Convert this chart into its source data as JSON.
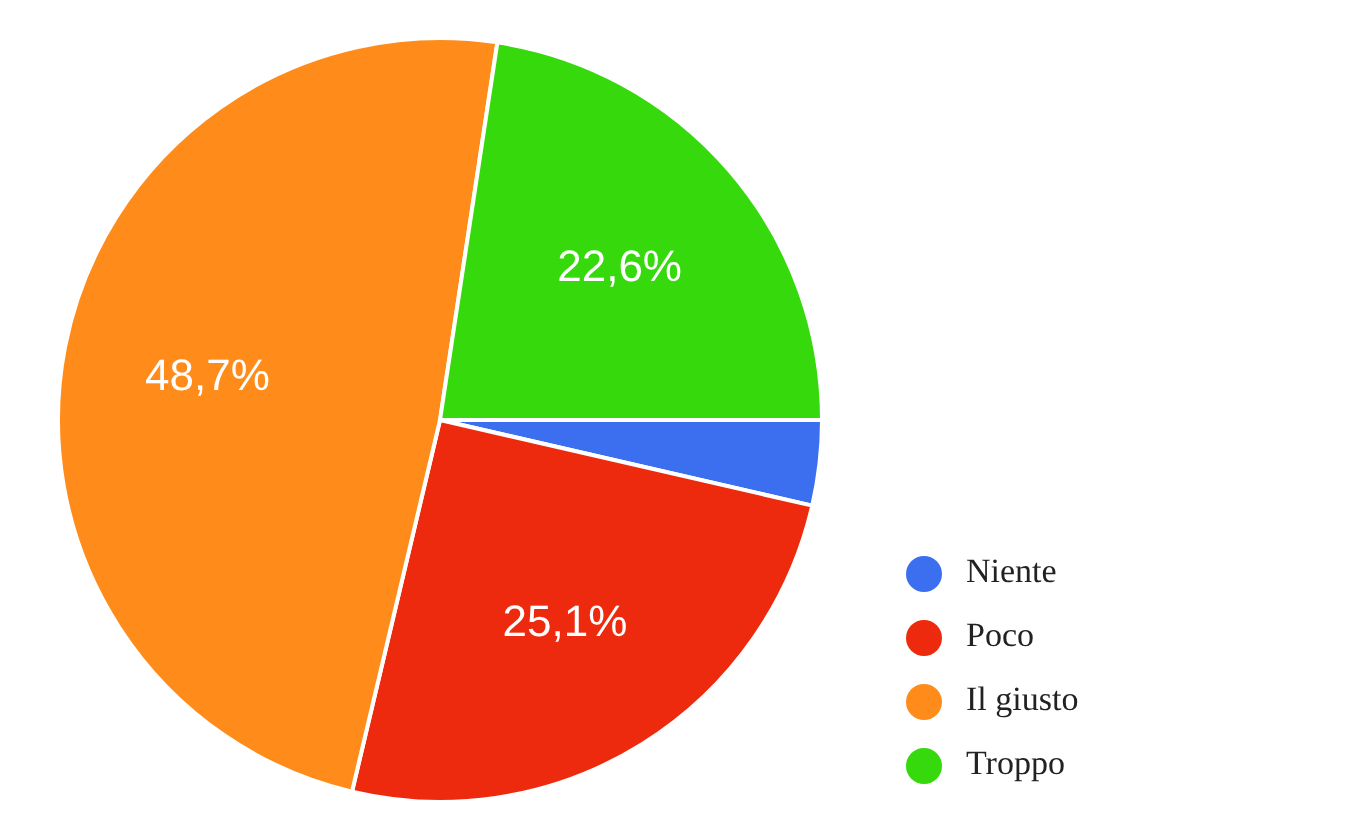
{
  "chart_data": {
    "type": "pie",
    "categories": [
      "Niente",
      "Poco",
      "Il giusto",
      "Troppo"
    ],
    "values": [
      3.6,
      25.1,
      48.7,
      22.6
    ],
    "colors": [
      "#3b6ff0",
      "#ee2a0e",
      "#ff8c1a",
      "#36d90c"
    ],
    "value_labels": [
      null,
      "25,1%",
      "48,7%",
      "22,6%"
    ],
    "legend": "right"
  }
}
